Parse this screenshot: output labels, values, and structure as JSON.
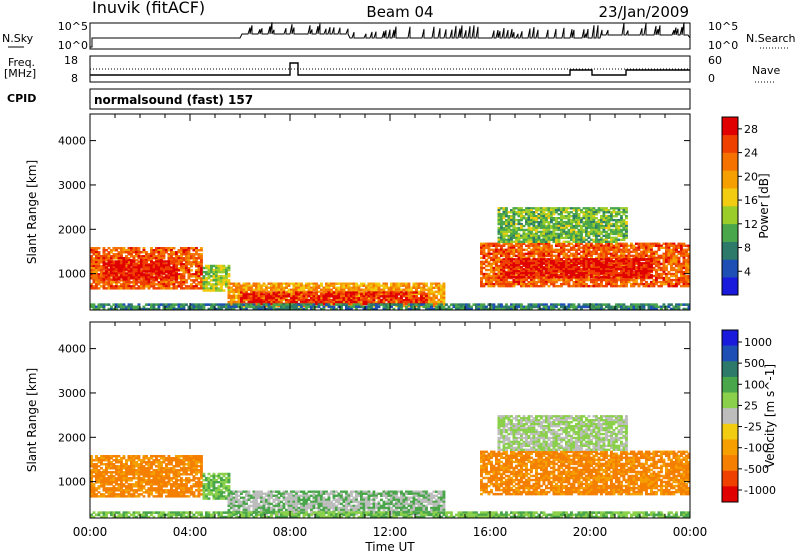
{
  "header": {
    "station": "Inuvik (fitACF)",
    "beam": "Beam 04",
    "date": "23/Jan/2009"
  },
  "strips": {
    "nsky_label": "N.Sky",
    "nsearch_label": "N.Search",
    "nsky_ticks": [
      "10^5",
      "10^0"
    ],
    "nsearch_ticks": [
      "10^5",
      "10^0"
    ],
    "freq_label": "Freq.",
    "freq_unit": "[MHz]",
    "freq_ticks": [
      "18",
      "8"
    ],
    "nave_label": "Nave",
    "nave_ticks": [
      "60",
      "0"
    ],
    "cpid_label": "CPID",
    "cpid_value": "normalsound (fast) 157"
  },
  "colors": {
    "power": [
      "#1a1adc",
      "#1d4fb5",
      "#2d7a6a",
      "#4aa64a",
      "#9acd2a",
      "#f2cc10",
      "#f5a000",
      "#f57200",
      "#f04000",
      "#e00000"
    ],
    "velocity": [
      "#e00000",
      "#f04000",
      "#f57f00",
      "#f5a000",
      "#f2cc10",
      "#bdbdbd",
      "#8ad04a",
      "#4aa64a",
      "#2d7a6a",
      "#1d4fb5",
      "#1a1adc"
    ],
    "ground_scatter": "#bdbdbd"
  },
  "chart_data": [
    {
      "type": "heatmap",
      "title": "Power",
      "xlabel": "Time UT",
      "ylabel": "Slant Range [km]",
      "x_ticks": [
        "00:00",
        "04:00",
        "08:00",
        "12:00",
        "16:00",
        "20:00",
        "00:00"
      ],
      "y_ticks": [
        "1000",
        "2000",
        "3000",
        "4000"
      ],
      "ylim": [
        180,
        4600
      ],
      "colorbar_label": "Power [dB]",
      "colorbar_ticks": [
        "4",
        "8",
        "12",
        "16",
        "20",
        "24",
        "28"
      ],
      "colorbar_range": [
        0,
        30
      ],
      "regions": [
        {
          "t0": 0.0,
          "t1": 4.5,
          "r0": 650,
          "r1": 1600,
          "value": 24
        },
        {
          "t0": 0.5,
          "t1": 3.5,
          "r0": 850,
          "r1": 1300,
          "value": 28
        },
        {
          "t0": 4.5,
          "t1": 5.6,
          "r0": 600,
          "r1": 1200,
          "value": 14
        },
        {
          "t0": 5.5,
          "t1": 14.2,
          "r0": 250,
          "r1": 800,
          "value": 20
        },
        {
          "t0": 6.0,
          "t1": 13.5,
          "r0": 300,
          "r1": 600,
          "value": 27
        },
        {
          "t0": 15.6,
          "t1": 24.0,
          "r0": 700,
          "r1": 1700,
          "value": 24
        },
        {
          "t0": 16.5,
          "t1": 22.5,
          "r0": 900,
          "r1": 1350,
          "value": 28
        },
        {
          "t0": 16.3,
          "t1": 21.5,
          "r0": 1700,
          "r1": 2500,
          "value": 12
        },
        {
          "t0": 0.0,
          "t1": 24.0,
          "r0": 180,
          "r1": 330,
          "value": 8
        }
      ]
    },
    {
      "type": "heatmap",
      "title": "Velocity",
      "xlabel": "Time UT",
      "ylabel": "Slant Range [km]",
      "x_ticks": [
        "00:00",
        "04:00",
        "08:00",
        "12:00",
        "16:00",
        "20:00",
        "00:00"
      ],
      "y_ticks": [
        "1000",
        "2000",
        "3000",
        "4000"
      ],
      "ylim": [
        180,
        4600
      ],
      "colorbar_label": "Velocity [m s^-1]",
      "colorbar_ticks": [
        "1000",
        "500",
        "100",
        "25",
        "-25",
        "-100",
        "-500",
        "-1000"
      ],
      "regions": [
        {
          "t0": 0.0,
          "t1": 4.5,
          "r0": 650,
          "r1": 1600,
          "value": -150
        },
        {
          "t0": 4.5,
          "t1": 5.6,
          "r0": 600,
          "r1": 1200,
          "value": 100
        },
        {
          "t0": 5.5,
          "t1": 14.2,
          "r0": 250,
          "r1": 800,
          "value": 0
        },
        {
          "t0": 15.6,
          "t1": 24.0,
          "r0": 700,
          "r1": 1700,
          "value": -200
        },
        {
          "t0": 16.3,
          "t1": 21.5,
          "r0": 1700,
          "r1": 2500,
          "value": 50
        },
        {
          "t0": 0.0,
          "t1": 24.0,
          "r0": 180,
          "r1": 330,
          "value": 100
        }
      ]
    }
  ]
}
